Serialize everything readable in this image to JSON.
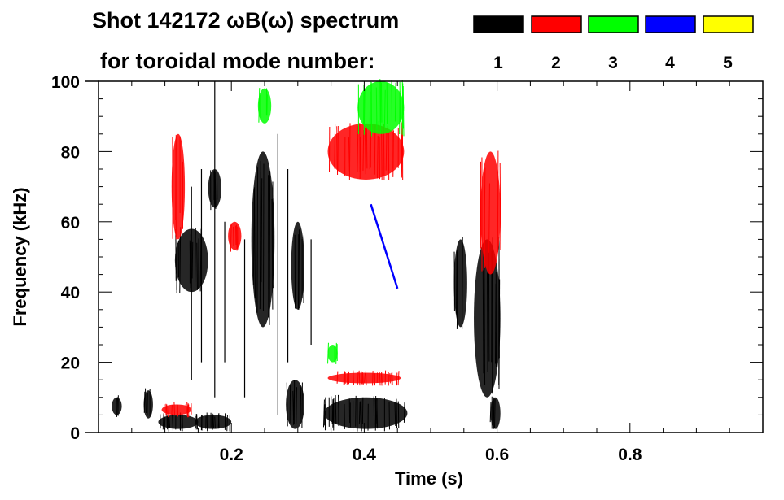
{
  "chart_data": {
    "type": "heatmap",
    "title_line1": "Shot 142172 ωB(ω) spectrum",
    "title_line2": "for toroidal mode number:",
    "xlabel": "Time (s)",
    "ylabel": "Frequency (kHz)",
    "xlim": [
      0,
      1.0
    ],
    "ylim": [
      0,
      100
    ],
    "xticks": [
      0.2,
      0.4,
      0.6,
      0.8
    ],
    "xtick_labels": [
      "0.2",
      "0.4",
      "0.6",
      "0.8"
    ],
    "yticks": [
      0,
      20,
      40,
      60,
      80,
      100
    ],
    "ytick_labels": [
      "0",
      "20",
      "40",
      "60",
      "80",
      "100"
    ],
    "x_minor_step": 0.05,
    "y_minor_step": 5,
    "legend": {
      "placement": "top-right",
      "entries": [
        {
          "label": "1",
          "color": "#000000"
        },
        {
          "label": "2",
          "color": "#ff0000"
        },
        {
          "label": "3",
          "color": "#00ff00"
        },
        {
          "label": "4",
          "color": "#0000ff"
        },
        {
          "label": "5",
          "color": "#ffff00"
        }
      ]
    },
    "features": [
      {
        "mode": 1,
        "t": [
          0.02,
          0.035
        ],
        "f": [
          5,
          10
        ]
      },
      {
        "mode": 1,
        "t": [
          0.068,
          0.082
        ],
        "f": [
          4,
          12
        ]
      },
      {
        "mode": 1,
        "t": [
          0.09,
          0.15
        ],
        "f": [
          1,
          5
        ]
      },
      {
        "mode": 1,
        "t": [
          0.115,
          0.165
        ],
        "f": [
          40,
          58
        ]
      },
      {
        "mode": 1,
        "t": [
          0.165,
          0.185
        ],
        "f": [
          64,
          75
        ]
      },
      {
        "mode": 1,
        "t": [
          0.145,
          0.2
        ],
        "f": [
          1,
          5
        ]
      },
      {
        "mode": 1,
        "t": [
          0.23,
          0.265
        ],
        "f": [
          30,
          80
        ]
      },
      {
        "mode": 1,
        "t": [
          0.29,
          0.31
        ],
        "f": [
          35,
          60
        ]
      },
      {
        "mode": 1,
        "t": [
          0.282,
          0.31
        ],
        "f": [
          1,
          15
        ]
      },
      {
        "mode": 1,
        "t": [
          0.34,
          0.465
        ],
        "f": [
          1,
          10
        ]
      },
      {
        "mode": 1,
        "t": [
          0.535,
          0.555
        ],
        "f": [
          30,
          55
        ]
      },
      {
        "mode": 1,
        "t": [
          0.565,
          0.605
        ],
        "f": [
          10,
          55
        ]
      },
      {
        "mode": 1,
        "t": [
          0.59,
          0.605
        ],
        "f": [
          1,
          10
        ]
      },
      {
        "mode": 2,
        "t": [
          0.11,
          0.13
        ],
        "f": [
          55,
          85
        ]
      },
      {
        "mode": 2,
        "t": [
          0.195,
          0.215
        ],
        "f": [
          52,
          60
        ]
      },
      {
        "mode": 2,
        "t": [
          0.345,
          0.46
        ],
        "f": [
          72,
          88
        ]
      },
      {
        "mode": 2,
        "t": [
          0.345,
          0.455
        ],
        "f": [
          14,
          17
        ]
      },
      {
        "mode": 2,
        "t": [
          0.575,
          0.605
        ],
        "f": [
          45,
          80
        ]
      },
      {
        "mode": 2,
        "t": [
          0.095,
          0.14
        ],
        "f": [
          5,
          8
        ]
      },
      {
        "mode": 3,
        "t": [
          0.39,
          0.46
        ],
        "f": [
          85,
          100
        ]
      },
      {
        "mode": 3,
        "t": [
          0.24,
          0.26
        ],
        "f": [
          88,
          98
        ]
      },
      {
        "mode": 3,
        "t": [
          0.345,
          0.36
        ],
        "f": [
          20,
          25
        ]
      }
    ],
    "lines": [
      {
        "mode": 4,
        "t": [
          0.41,
          0.45
        ],
        "f": [
          65,
          41
        ]
      },
      {
        "mode": 1,
        "t": [
          0.14,
          0.14
        ],
        "f": [
          15,
          70
        ]
      },
      {
        "mode": 1,
        "t": [
          0.155,
          0.155
        ],
        "f": [
          20,
          75
        ]
      },
      {
        "mode": 1,
        "t": [
          0.175,
          0.175
        ],
        "f": [
          10,
          100
        ]
      },
      {
        "mode": 1,
        "t": [
          0.19,
          0.19
        ],
        "f": [
          20,
          60
        ]
      },
      {
        "mode": 1,
        "t": [
          0.22,
          0.22
        ],
        "f": [
          10,
          55
        ]
      },
      {
        "mode": 1,
        "t": [
          0.27,
          0.27
        ],
        "f": [
          5,
          85
        ]
      },
      {
        "mode": 1,
        "t": [
          0.285,
          0.285
        ],
        "f": [
          20,
          75
        ]
      },
      {
        "mode": 1,
        "t": [
          0.32,
          0.32
        ],
        "f": [
          25,
          55
        ]
      }
    ]
  }
}
